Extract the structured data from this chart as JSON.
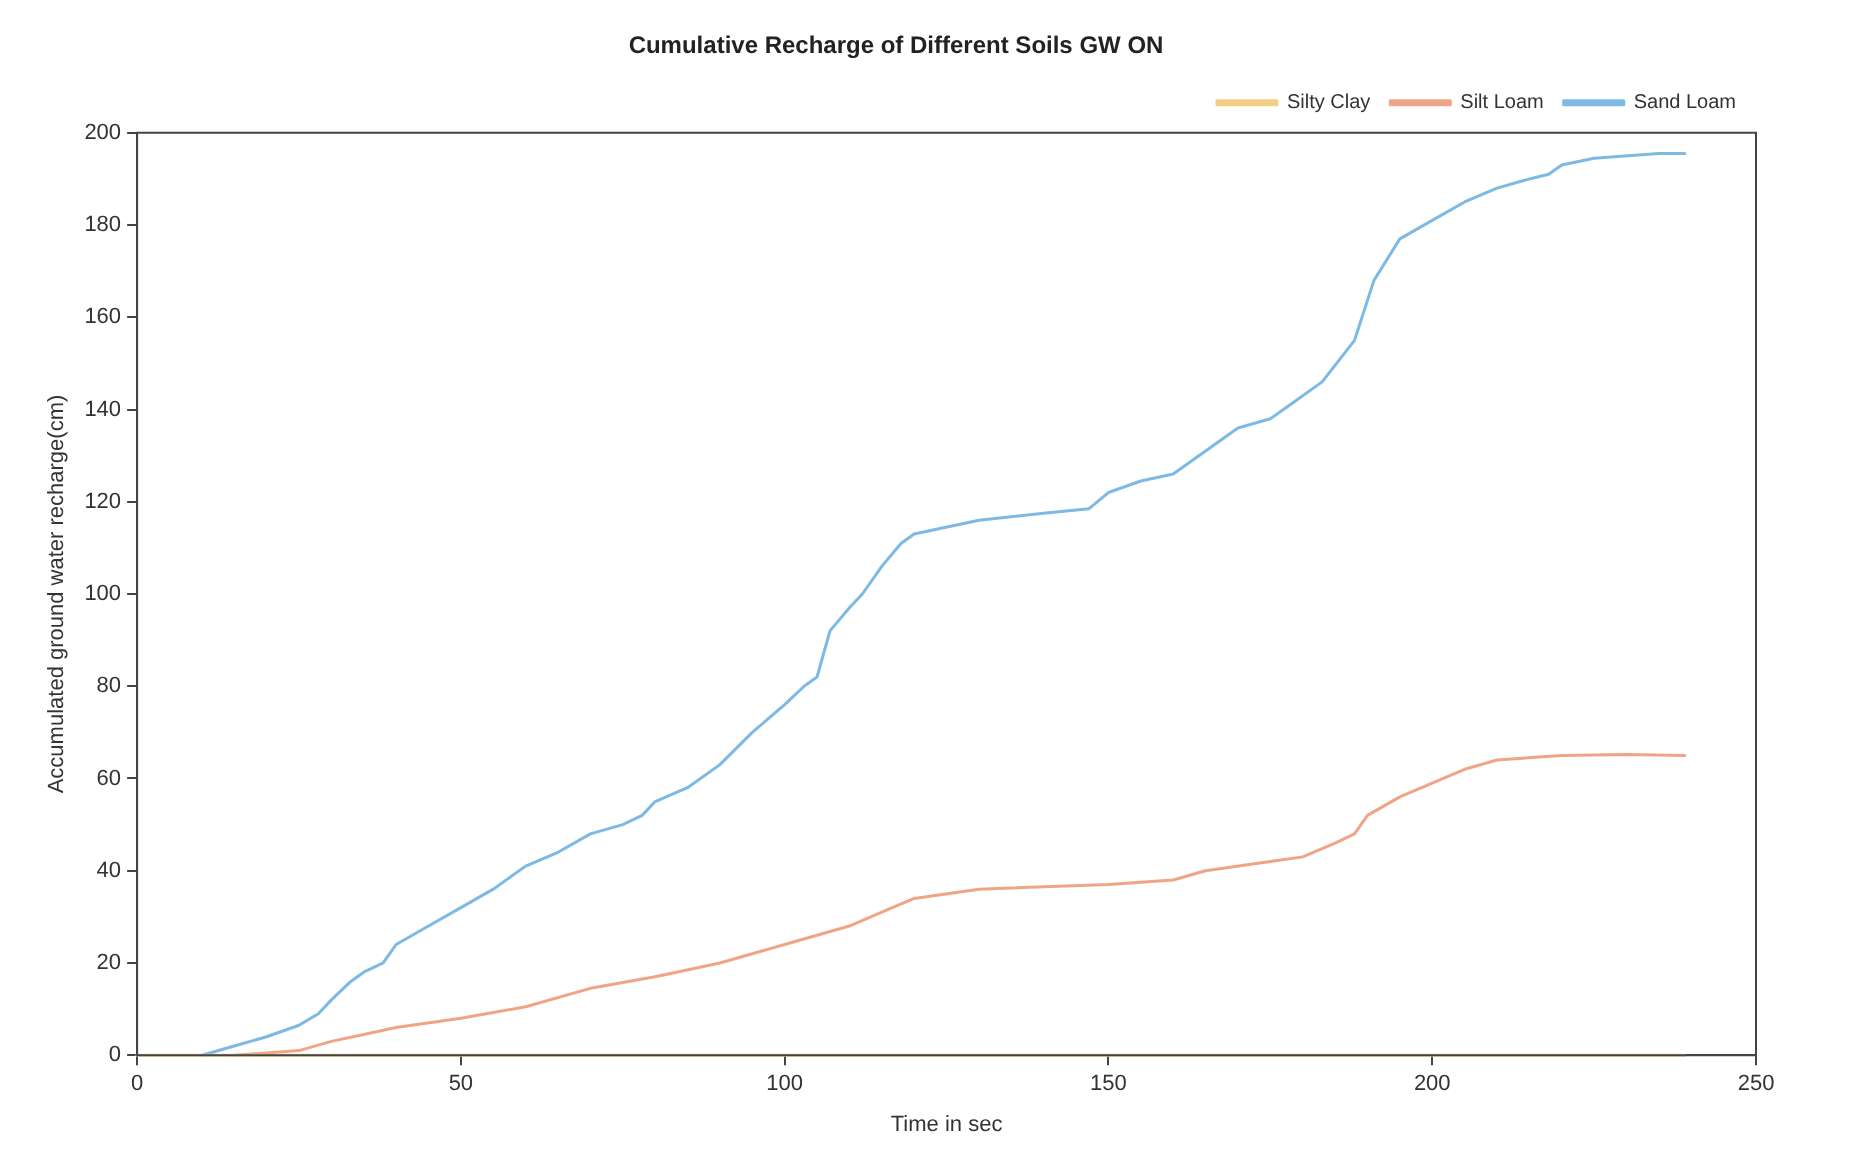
{
  "chart_data": {
    "type": "line",
    "title": "Cumulative Recharge of Different Soils GW ON",
    "xlabel": "Time in sec",
    "ylabel": "Accumulated ground water recharge(cm)",
    "xlim": [
      0,
      250
    ],
    "xticks": [
      0,
      50,
      100,
      150,
      200,
      250
    ],
    "ylim": [
      0,
      200
    ],
    "yticks": [
      0,
      20,
      40,
      60,
      80,
      100,
      120,
      140,
      160,
      180,
      200
    ],
    "grid": false,
    "legend": "top right",
    "marker": "none",
    "line_style": "solid",
    "series": [
      {
        "name": "Sand Loam",
        "color": "#7db9e3",
        "x": [
          10,
          15,
          20,
          25,
          28,
          30,
          33,
          35,
          38,
          40,
          45,
          50,
          55,
          60,
          65,
          70,
          75,
          78,
          80,
          85,
          90,
          95,
          100,
          103,
          105,
          107,
          110,
          112,
          115,
          118,
          120,
          130,
          140,
          147,
          150,
          155,
          160,
          165,
          170,
          175,
          178,
          183,
          188,
          191,
          195,
          200,
          205,
          210,
          215,
          218,
          220,
          225,
          235,
          239
        ],
        "values": [
          0,
          2,
          4,
          6.5,
          9,
          12,
          16,
          18,
          20,
          24,
          28,
          32,
          36,
          41,
          44,
          48,
          50,
          52,
          55,
          58,
          63,
          70,
          76,
          80,
          82,
          92,
          97,
          100,
          106,
          111,
          113,
          116,
          117.5,
          118.5,
          122,
          124.5,
          126,
          131,
          136,
          138,
          141,
          146,
          155,
          168,
          177,
          181,
          185,
          188,
          190,
          191,
          193,
          194.5,
          195.5,
          195.5
        ]
      },
      {
        "name": "Silt Loam",
        "color": "#f0a486",
        "x": [
          15,
          20,
          25,
          30,
          35,
          40,
          50,
          60,
          70,
          80,
          90,
          100,
          110,
          115,
          120,
          130,
          150,
          160,
          165,
          175,
          180,
          185,
          188,
          190,
          195,
          200,
          205,
          210,
          220,
          230,
          239
        ],
        "values": [
          0,
          0.5,
          1,
          3,
          4.5,
          6,
          8,
          10.5,
          14.5,
          17,
          20,
          24,
          28,
          31,
          34,
          36,
          37,
          38,
          40,
          42,
          43,
          46,
          48,
          52,
          56,
          59,
          62,
          64,
          65,
          65.2,
          65
        ]
      },
      {
        "name": "Silty Clay",
        "color": "#f2cf85",
        "x": [
          0,
          239
        ],
        "values": [
          0,
          0
        ]
      }
    ]
  }
}
